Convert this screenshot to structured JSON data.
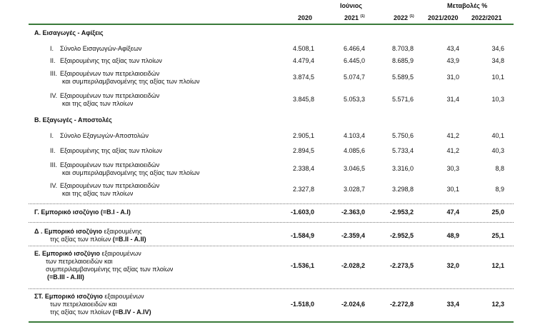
{
  "header": {
    "month": "Ιούνιος",
    "change_title": "Μεταβολές %",
    "col_2020": "2020",
    "col_2021": "2021",
    "col_2021_sup": "(1)",
    "col_2022": "2022",
    "col_2022_sup": "(1)",
    "col_ch1": "2021/2020",
    "col_ch2": "2022/2021"
  },
  "sections": {
    "A": "A. Εισαγωγές - Αφίξεις",
    "B": "B. Εξαγωγές - Αποστολές"
  },
  "rows": [
    {
      "n": "I.",
      "l1": "Σύνολο Εισαγωγών-Αφίξεων",
      "l2": "",
      "v2020": "4.508,1",
      "v2021": "6.466,4",
      "v2022": "8.703,8",
      "c1": "43,4",
      "c2": "34,6"
    },
    {
      "n": "II.",
      "l1": "Εξαιρουμένης της αξίας των πλοίων",
      "l2": "",
      "v2020": "4.479,4",
      "v2021": "6.445,0",
      "v2022": "8.685,9",
      "c1": "43,9",
      "c2": "34,8"
    },
    {
      "n": "III.",
      "l1": "Εξαιρουμένων των πετρελαιοειδών",
      "l2": "και συμπεριλαμβανομένης της αξίας των πλοίων",
      "v2020": "3.874,5",
      "v2021": "5.074,7",
      "v2022": "5.589,5",
      "c1": "31,0",
      "c2": "10,1"
    },
    {
      "n": "IV.",
      "l1": "Εξαιρουμένων των πετρελαιοειδών",
      "l2": "και της αξίας των πλοίων",
      "v2020": "3.845,8",
      "v2021": "5.053,3",
      "v2022": "5.571,6",
      "c1": "31,4",
      "c2": "10,3"
    },
    {
      "n": "I.",
      "l1": "Σύνολο Εξαγωγών-Αποστολών",
      "l2": "",
      "v2020": "2.905,1",
      "v2021": "4.103,4",
      "v2022": "5.750,6",
      "c1": "41,2",
      "c2": "40,1"
    },
    {
      "n": "II.",
      "l1": "Εξαιρουμένης της αξίας των πλοίων",
      "l2": "",
      "v2020": "2.894,5",
      "v2021": "4.085,6",
      "v2022": "5.733,4",
      "c1": "41,2",
      "c2": "40,3"
    },
    {
      "n": "III.",
      "l1": "Εξαιρουμένων των πετρελαιοειδών",
      "l2": "και συμπεριλαμβανομένης της αξίας των πλοίων",
      "v2020": "2.338,4",
      "v2021": "3.046,5",
      "v2022": "3.316,0",
      "c1": "30,3",
      "c2": "8,8"
    },
    {
      "n": "IV.",
      "l1": "Εξαιρουμένων των πετρελαιοειδών",
      "l2": "και της αξίας των πλοίων",
      "v2020": "2.327,8",
      "v2021": "3.028,7",
      "v2022": "3.298,8",
      "c1": "30,1",
      "c2": "8,9"
    }
  ],
  "balances": [
    {
      "bold": "Γ. Εμπορικό ισοζύγιο (=B.I - A.I)",
      "l2": "",
      "l3": "",
      "l4": "",
      "v2020": "-1.603,0",
      "v2021": "-2.363,0",
      "v2022": "-2.953,2",
      "c1": "47,4",
      "c2": "25,0"
    },
    {
      "bold": "Δ . Εμπορικό ισοζύγιο",
      "rest": " εξαιρουμένης",
      "l2": "της αξίας των πλοίων",
      "l2b": " (=B.II - A.II)",
      "v2020": "-1.584,9",
      "v2021": "-2.359,4",
      "v2022": "-2.952,5",
      "c1": "48,9",
      "c2": "25,1"
    },
    {
      "bold": "Ε. Εμπορικό ισοζύγιο",
      "rest": " εξαιρουμένων",
      "l2": "των πετρελαιοειδών και",
      "l3": "συμπεριλαμβανομένης της αξίας των πλοίων",
      "l4": "(=B.III - A.III)",
      "v2020": "-1.536,1",
      "v2021": "-2.028,2",
      "v2022": "-2.273,5",
      "c1": "32,0",
      "c2": "12,1"
    },
    {
      "bold": "ΣΤ. Εμπορικό ισοζύγιο",
      "rest": " εξαιρουμένων",
      "l2": "των πετρελαιοειδών και",
      "l3": "της αξίας των πλοίων",
      "l3b": " (=B.IV - A.IV)",
      "v2020": "-1.518,0",
      "v2021": "-2.024,6",
      "v2022": "-2.272,8",
      "c1": "33,4",
      "c2": "12,3"
    }
  ]
}
